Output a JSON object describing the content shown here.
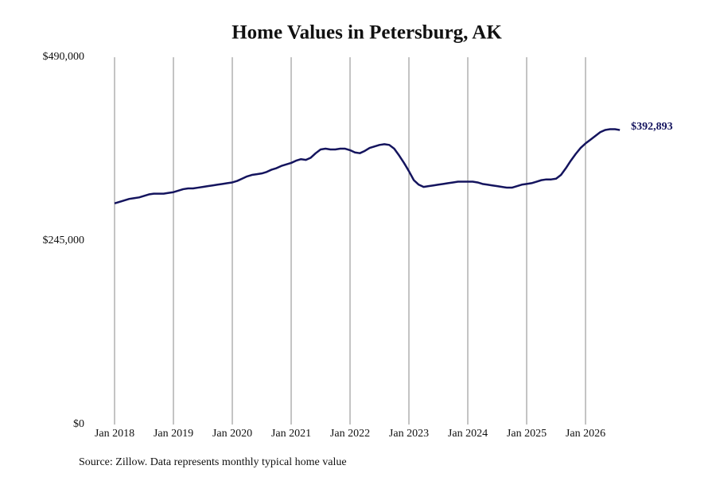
{
  "chart_data": {
    "type": "line",
    "title": "Home Values in Petersburg, AK",
    "source": "Source: Zillow. Data represents monthly typical home value",
    "last_value_label": "$392,893",
    "color": "#14145e",
    "grid": true,
    "x": [
      "2018-01",
      "2018-02",
      "2018-03",
      "2018-04",
      "2018-05",
      "2018-06",
      "2018-07",
      "2018-08",
      "2018-09",
      "2018-10",
      "2018-11",
      "2018-12",
      "2019-01",
      "2019-02",
      "2019-03",
      "2019-04",
      "2019-05",
      "2019-06",
      "2019-07",
      "2019-08",
      "2019-09",
      "2019-10",
      "2019-11",
      "2019-12",
      "2020-01",
      "2020-02",
      "2020-03",
      "2020-04",
      "2020-05",
      "2020-06",
      "2020-07",
      "2020-08",
      "2020-09",
      "2020-10",
      "2020-11",
      "2020-12",
      "2021-01",
      "2021-02",
      "2021-03",
      "2021-04",
      "2021-05",
      "2021-06",
      "2021-07",
      "2021-08",
      "2021-09",
      "2021-10",
      "2021-11",
      "2021-12",
      "2022-01",
      "2022-02",
      "2022-03",
      "2022-04",
      "2022-05",
      "2022-06",
      "2022-07",
      "2022-08",
      "2022-09",
      "2022-10",
      "2022-11",
      "2022-12",
      "2023-01",
      "2023-02",
      "2023-03",
      "2023-04",
      "2023-05",
      "2023-06",
      "2023-07",
      "2023-08",
      "2023-09",
      "2023-10",
      "2023-11",
      "2023-12",
      "2024-01",
      "2024-02",
      "2024-03",
      "2024-04",
      "2024-05",
      "2024-06",
      "2024-07",
      "2024-08",
      "2024-09",
      "2024-10",
      "2024-11",
      "2024-12",
      "2025-01",
      "2025-02",
      "2025-03",
      "2025-04",
      "2025-05",
      "2025-06",
      "2025-07",
      "2025-08",
      "2025-09",
      "2025-10",
      "2025-11",
      "2025-12",
      "2026-01",
      "2026-02",
      "2026-03",
      "2026-04",
      "2026-05",
      "2026-06",
      "2026-07",
      "2026-08"
    ],
    "values": [
      295000,
      297000,
      299000,
      301000,
      302000,
      303000,
      305000,
      307000,
      308000,
      308000,
      308000,
      309000,
      310000,
      312000,
      314000,
      315000,
      315000,
      316000,
      317000,
      318000,
      319000,
      320000,
      321000,
      322000,
      323000,
      325000,
      328000,
      331000,
      333000,
      334000,
      335000,
      337000,
      340000,
      342000,
      345000,
      347000,
      349000,
      352000,
      354000,
      353000,
      356000,
      362000,
      367000,
      368000,
      367000,
      367000,
      368000,
      368000,
      366000,
      363000,
      362000,
      365000,
      369000,
      371000,
      373000,
      374000,
      373000,
      368000,
      359000,
      349000,
      338000,
      326000,
      320000,
      317000,
      318000,
      319000,
      320000,
      321000,
      322000,
      323000,
      324000,
      324000,
      324000,
      324000,
      323000,
      321000,
      320000,
      319000,
      318000,
      317000,
      316000,
      316000,
      318000,
      320000,
      321000,
      322000,
      324000,
      326000,
      327000,
      327000,
      328000,
      333000,
      342000,
      352000,
      361000,
      369000,
      375000,
      380000,
      385000,
      390000,
      393000,
      394000,
      394000,
      392893
    ],
    "ylim": [
      0,
      490000
    ],
    "yticks": [
      {
        "value": 0,
        "label": "$0"
      },
      {
        "value": 245000,
        "label": "$245,000"
      },
      {
        "value": 490000,
        "label": "$490,000"
      }
    ],
    "xticks": [
      {
        "value": "2018-01",
        "label": "Jan 2018"
      },
      {
        "value": "2019-01",
        "label": "Jan 2019"
      },
      {
        "value": "2020-01",
        "label": "Jan 2020"
      },
      {
        "value": "2021-01",
        "label": "Jan 2021"
      },
      {
        "value": "2022-01",
        "label": "Jan 2022"
      },
      {
        "value": "2023-01",
        "label": "Jan 2023"
      },
      {
        "value": "2024-01",
        "label": "Jan 2024"
      },
      {
        "value": "2025-01",
        "label": "Jan 2025"
      },
      {
        "value": "2026-01",
        "label": "Jan 2026"
      }
    ]
  }
}
